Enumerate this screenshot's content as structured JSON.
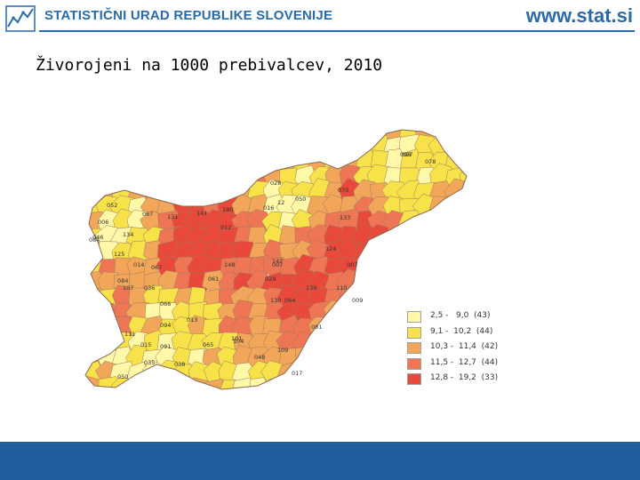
{
  "header": {
    "org_name": "STATISTIČNI URAD REPUBLIKE SLOVENIJE",
    "site_url": "www.stat.si",
    "logo_icon": "sursi-logo-icon",
    "brand_color": "#2a6aa8"
  },
  "title": "Živorojeni na 1000 prebivalcev, 2010",
  "map": {
    "region": "Slovenija",
    "unit_type": "občine",
    "labels": [
      "052",
      "067",
      "141",
      "131",
      "016",
      "12",
      "028",
      "070",
      "097",
      "078",
      "133",
      "006",
      "084",
      "046",
      "125",
      "134",
      "124",
      "012",
      "148",
      "014",
      "067",
      "007",
      "061",
      "139",
      "142",
      "107",
      "084",
      "036",
      "110",
      "066",
      "064",
      "029",
      "130",
      "094",
      "013",
      "101",
      "111",
      "015",
      "091",
      "065",
      "104",
      "081",
      "035",
      "038",
      "048",
      "050",
      "017",
      "109",
      "009",
      "180",
      "050",
      "098",
      "007"
    ],
    "legend": [
      {
        "range": "2,5 -   9,0",
        "count": "(43)",
        "color": "#fff8a8"
      },
      {
        "range": "9,1 -  10,2",
        "count": "(44)",
        "color": "#f7e24a"
      },
      {
        "range": "10,3 -  11,4",
        "count": "(42)",
        "color": "#f2a65a"
      },
      {
        "range": "11,5 -  12,7",
        "count": "(44)",
        "color": "#ee7654"
      },
      {
        "range": "12,8 -  19,2",
        "count": "(33)",
        "color": "#e8493a"
      }
    ]
  },
  "footer": {
    "color": "#1f5fa0"
  }
}
